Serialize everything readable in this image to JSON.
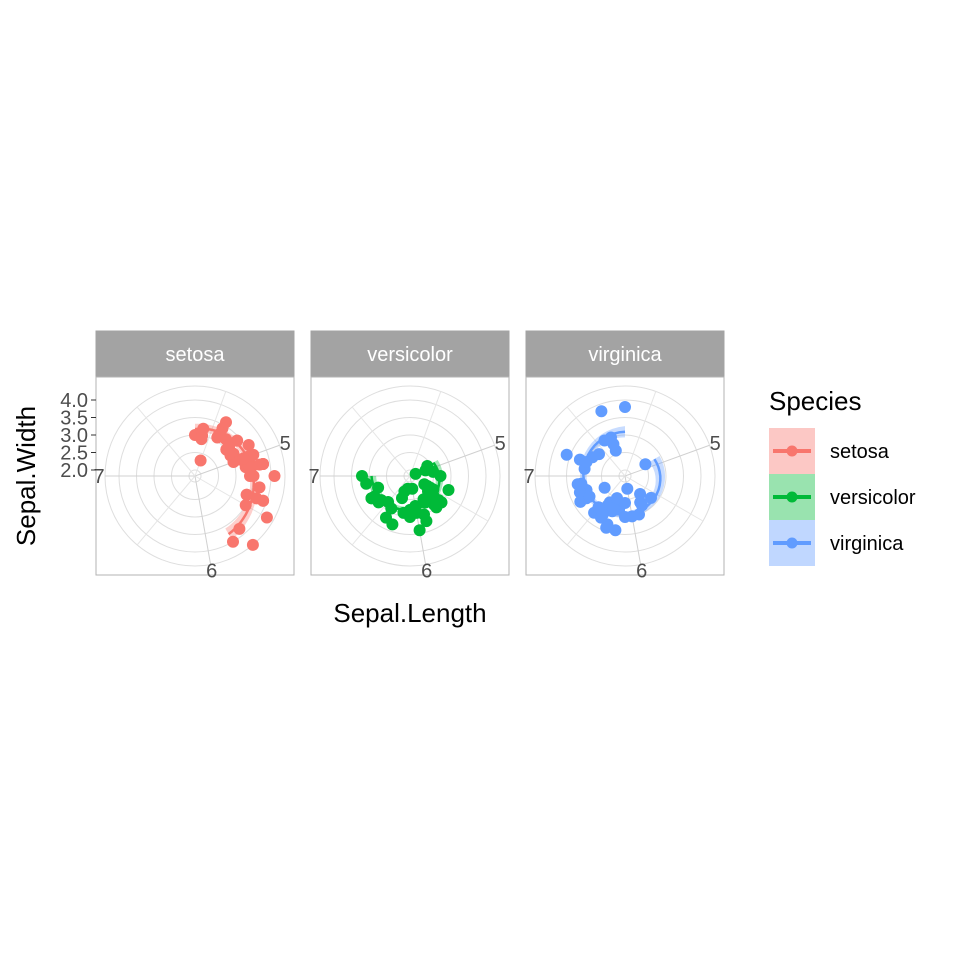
{
  "chart_data": {
    "type": "scatter",
    "coord": "polar",
    "theta_variable": "Sepal.Length",
    "r_variable": "Sepal.Width",
    "xlabel": "Sepal.Length",
    "ylabel": "Sepal.Width",
    "theta_ticks": [
      "5",
      "6",
      "7"
    ],
    "r_ticks": [
      "2.0",
      "2.5",
      "3.0",
      "3.5",
      "4.0"
    ],
    "grid": true,
    "legend": {
      "title": "Species",
      "position": "right",
      "items": [
        "setosa",
        "versicolor",
        "virginica"
      ]
    },
    "smooth": "loess with confidence band",
    "panels": [
      {
        "name": "setosa",
        "color": "#F8766D",
        "x": [
          5.1,
          4.9,
          4.7,
          4.6,
          5.0,
          5.4,
          4.6,
          5.0,
          4.4,
          4.9,
          5.4,
          4.8,
          4.8,
          4.3,
          5.8,
          5.7,
          5.4,
          5.1,
          5.7,
          5.1,
          5.4,
          5.1,
          4.6,
          5.1,
          4.8,
          5.0,
          5.0,
          5.2,
          5.2,
          4.7,
          4.8,
          5.4,
          5.2,
          5.5,
          4.9,
          5.0,
          5.5,
          4.9,
          4.4,
          5.1,
          5.0,
          4.5,
          4.4,
          5.0,
          5.1,
          4.8,
          5.1,
          4.6,
          5.3,
          5.0
        ],
        "y": [
          3.5,
          3.0,
          3.2,
          3.1,
          3.6,
          3.9,
          3.4,
          3.4,
          2.9,
          3.1,
          3.7,
          3.4,
          3.0,
          3.0,
          4.0,
          4.4,
          3.9,
          3.5,
          3.8,
          3.8,
          3.4,
          3.7,
          3.6,
          3.3,
          3.4,
          3.0,
          3.4,
          3.5,
          3.4,
          3.2,
          3.1,
          3.4,
          4.1,
          4.2,
          3.1,
          3.2,
          3.5,
          3.6,
          3.0,
          3.4,
          3.5,
          2.3,
          3.2,
          3.5,
          3.8,
          3.0,
          3.8,
          3.2,
          3.7,
          3.3
        ]
      },
      {
        "name": "versicolor",
        "color": "#00BA38",
        "x": [
          7.0,
          6.4,
          6.9,
          5.5,
          6.5,
          5.7,
          6.3,
          4.9,
          6.6,
          5.2,
          5.0,
          5.9,
          6.0,
          6.1,
          5.6,
          6.7,
          5.6,
          5.8,
          6.2,
          5.6,
          5.9,
          6.1,
          6.3,
          6.1,
          6.4,
          6.6,
          6.8,
          6.7,
          6.0,
          5.7,
          5.5,
          5.5,
          5.8,
          6.0,
          5.4,
          6.0,
          6.7,
          6.3,
          5.6,
          5.5,
          5.5,
          6.1,
          5.8,
          5.0,
          5.6,
          5.7,
          5.7,
          6.2,
          5.1,
          5.7
        ],
        "y": [
          3.2,
          3.2,
          3.1,
          2.3,
          2.8,
          2.8,
          3.3,
          2.4,
          2.9,
          2.7,
          2.0,
          3.0,
          2.2,
          2.9,
          2.9,
          3.1,
          3.0,
          2.7,
          2.2,
          2.5,
          3.2,
          2.8,
          2.5,
          2.8,
          2.9,
          3.0,
          2.8,
          3.0,
          2.9,
          2.6,
          2.4,
          2.4,
          2.7,
          2.7,
          3.0,
          3.4,
          3.1,
          2.3,
          3.0,
          2.5,
          2.6,
          3.0,
          2.6,
          2.3,
          2.7,
          3.0,
          2.9,
          2.9,
          2.5,
          2.8
        ]
      },
      {
        "name": "virginica",
        "color": "#619CFF",
        "x": [
          6.3,
          5.8,
          7.1,
          6.3,
          6.5,
          7.6,
          4.9,
          7.3,
          6.7,
          7.2,
          6.5,
          6.4,
          6.8,
          5.7,
          5.8,
          6.4,
          6.5,
          7.7,
          7.7,
          6.0,
          6.9,
          5.6,
          7.7,
          6.3,
          6.7,
          7.2,
          6.2,
          6.1,
          6.4,
          7.2,
          7.4,
          7.9,
          6.4,
          6.3,
          6.1,
          7.7,
          6.3,
          6.4,
          6.0,
          6.9,
          6.7,
          6.9,
          5.8,
          6.8,
          6.7,
          6.7,
          6.3,
          6.5,
          6.2,
          5.9
        ],
        "y": [
          3.3,
          2.7,
          3.0,
          2.9,
          3.0,
          3.0,
          2.5,
          2.9,
          2.5,
          3.6,
          3.2,
          2.7,
          3.0,
          2.5,
          2.8,
          3.2,
          3.0,
          3.8,
          2.6,
          2.2,
          3.2,
          2.8,
          2.8,
          2.7,
          3.3,
          3.2,
          2.8,
          3.0,
          2.8,
          3.0,
          2.8,
          3.8,
          2.8,
          2.8,
          2.6,
          3.0,
          3.4,
          3.1,
          3.0,
          3.1,
          3.1,
          3.1,
          2.7,
          3.2,
          3.3,
          3.0,
          2.5,
          3.0,
          3.4,
          3.0
        ]
      }
    ]
  }
}
